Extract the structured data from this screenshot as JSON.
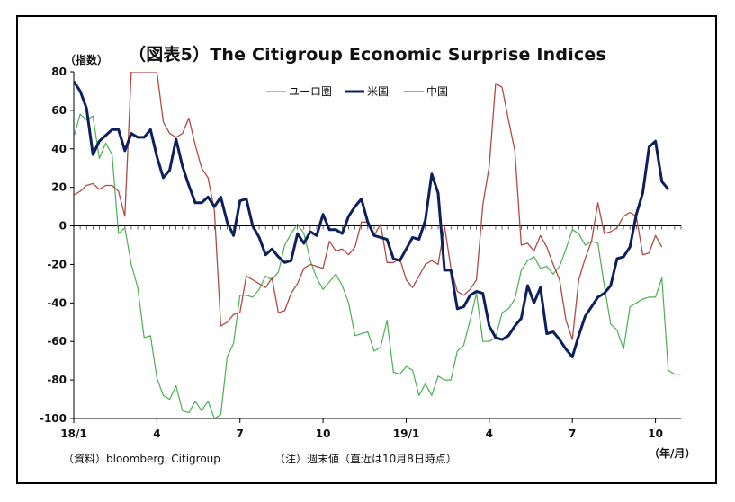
{
  "chart_data": {
    "type": "line",
    "title": "（図表5）The Citigroup Economic Surprise Indices",
    "ylabel": "（指数）",
    "xlabel": "（年/月）",
    "ylim": [
      -100,
      80
    ],
    "yticks": [
      "80",
      "60",
      "40",
      "20",
      "0",
      "-20",
      "-40",
      "-60",
      "-80",
      "-100"
    ],
    "xticks": [
      {
        "label": "18/1",
        "week": 0
      },
      {
        "label": "4",
        "week": 13
      },
      {
        "label": "7",
        "week": 26
      },
      {
        "label": "10",
        "week": 39
      },
      {
        "label": "19/1",
        "week": 52
      },
      {
        "label": "4",
        "week": 65
      },
      {
        "label": "7",
        "week": 78
      },
      {
        "label": "10",
        "week": 91
      }
    ],
    "legend_position": "top-center",
    "series": [
      {
        "name": "ユーロ圏",
        "color": "#4caf50",
        "values": [
          46,
          58,
          55,
          57,
          35,
          43,
          37,
          -4,
          -1,
          -20,
          -32,
          -58,
          -57,
          -79,
          -88,
          -90,
          -83,
          -96,
          -97,
          -91,
          -96,
          -91,
          -100,
          -98,
          -68,
          -61,
          -36,
          -36,
          -37,
          -33,
          -26,
          -28,
          -24,
          -10,
          -4,
          1,
          -4,
          -18,
          -27,
          -33,
          -29,
          -25,
          -31,
          -40,
          -57,
          -56,
          -55,
          -65,
          -63,
          -49,
          -76,
          -77,
          -73,
          -75,
          -88,
          -82,
          -88,
          -78,
          -80,
          -80,
          -65,
          -62,
          -49,
          -35,
          -60,
          -60,
          -58,
          -45,
          -43,
          -38,
          -23,
          -18,
          -16,
          -22,
          -21,
          -25,
          -21,
          -12,
          -2,
          -4,
          -10,
          -8,
          -9,
          -31,
          -51,
          -54,
          -64,
          -42,
          -40,
          -38,
          -37,
          -37,
          -27,
          -75,
          -77,
          -77
        ]
      },
      {
        "name": "米国",
        "color": "#0d1f5c",
        "values": [
          75,
          70,
          61,
          37,
          44,
          47,
          50,
          50,
          39,
          48,
          46,
          46,
          50,
          36,
          25,
          29,
          45,
          31,
          21,
          12,
          12,
          15,
          10,
          15,
          2,
          -5,
          13,
          14,
          0,
          -6,
          -15,
          -12,
          -16,
          -19,
          -18,
          -4,
          -9,
          -3,
          -5,
          6,
          -2,
          -2,
          -4,
          5,
          10,
          14,
          2,
          -5,
          -6,
          -7,
          -17,
          -18,
          -12,
          -6,
          -7,
          3,
          27,
          17,
          -23,
          -23,
          -43,
          -42,
          -36,
          -34,
          -35,
          -52,
          -58,
          -59,
          -57,
          -52,
          -48,
          -31,
          -40,
          -32,
          -56,
          -55,
          -59,
          -64,
          -68,
          -57,
          -47,
          -42,
          -37,
          -35,
          -31,
          -17,
          -16,
          -11,
          6,
          17,
          41,
          44,
          23,
          19
        ]
      },
      {
        "name": "中国",
        "color": "#b04a44",
        "values": [
          16,
          18,
          21,
          22,
          19,
          21,
          21,
          18,
          5,
          80,
          80,
          80,
          80,
          80,
          54,
          48,
          46,
          48,
          56,
          42,
          30,
          25,
          8,
          -52,
          -50,
          -46,
          -45,
          -26,
          -28,
          -30,
          -32,
          -27,
          -45,
          -44,
          -35,
          -30,
          -22,
          -20,
          -21,
          -22,
          -8,
          -13,
          -12,
          -15,
          -11,
          2,
          2,
          -5,
          1,
          -19,
          -19,
          -17,
          -28,
          -32,
          -26,
          -20,
          -18,
          -20,
          0,
          -22,
          -34,
          -36,
          -33,
          -28,
          11,
          31,
          74,
          72,
          55,
          39,
          -10,
          -9,
          -13,
          -5,
          -11,
          -20,
          -28,
          -49,
          -59,
          -28,
          -17,
          -8,
          12,
          -4,
          -3,
          -1,
          5,
          7,
          5,
          -15,
          -14,
          -5,
          -11
        ]
      }
    ]
  },
  "notes": {
    "source": "（資料）bloomberg, Citigroup",
    "footnote": "（注）週末値（直近は10月8日時点）"
  }
}
